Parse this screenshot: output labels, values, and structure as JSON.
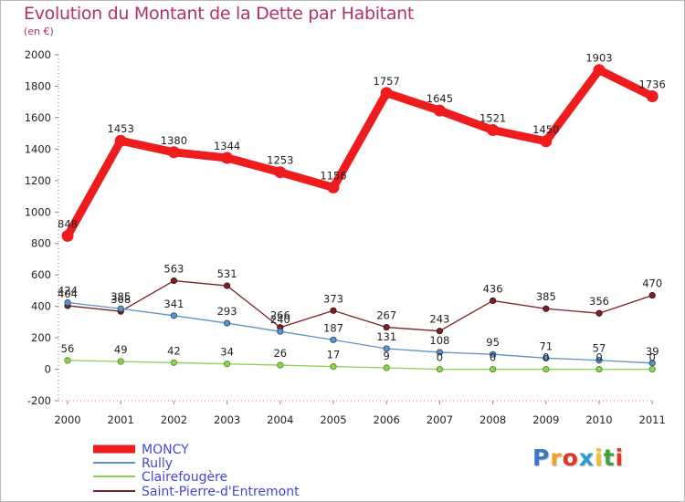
{
  "chart_data": {
    "type": "line",
    "title": "Evolution du Montant de la Dette par Habitant",
    "subtitle": "(en €)",
    "categories": [
      "2000",
      "2001",
      "2002",
      "2003",
      "2004",
      "2005",
      "2006",
      "2007",
      "2008",
      "2009",
      "2010",
      "2011"
    ],
    "ylim": [
      -200,
      2000
    ],
    "yticks": [
      -200,
      0,
      200,
      400,
      600,
      800,
      1000,
      1200,
      1400,
      1600,
      1800,
      2000
    ],
    "grid": false,
    "legend_position": "bottom-left",
    "series": [
      {
        "name": "MONCY",
        "color": "#ee1c1c",
        "values": [
          848,
          1453,
          1380,
          1344,
          1253,
          1156,
          1757,
          1645,
          1521,
          1450,
          1903,
          1736
        ]
      },
      {
        "name": "Rully",
        "color": "#5b92c9",
        "values": [
          424,
          385,
          341,
          293,
          240,
          187,
          131,
          108,
          95,
          71,
          57,
          39
        ]
      },
      {
        "name": "Clairefougère",
        "color": "#8ed053",
        "values": [
          56,
          49,
          42,
          34,
          26,
          17,
          9,
          0,
          0,
          0,
          0,
          0
        ]
      },
      {
        "name": "Saint-Pierre-d'Entremont",
        "color": "#7a2226",
        "values": [
          404,
          368,
          563,
          531,
          266,
          373,
          267,
          243,
          436,
          385,
          356,
          470
        ]
      }
    ]
  },
  "logo": {
    "letters": [
      "P",
      "r",
      "o",
      "x",
      "i",
      "t",
      "i"
    ],
    "colors": [
      "#3a78c7",
      "#f2a321",
      "#e0362a",
      "#2a9bd6",
      "#f2c12a",
      "#3aa63a",
      "#e0362a"
    ]
  }
}
